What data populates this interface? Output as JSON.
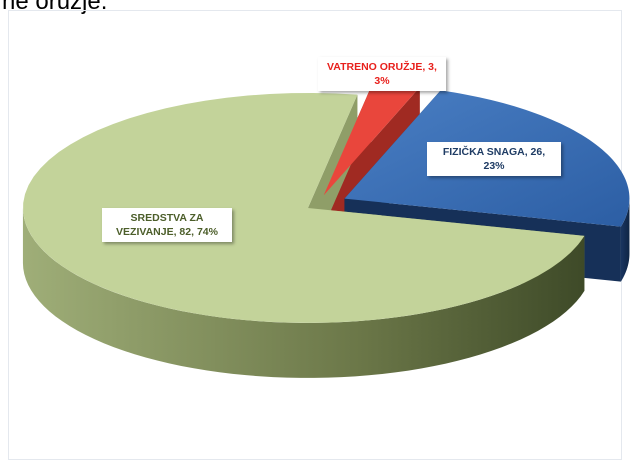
{
  "title": "ne oružje.",
  "chart_data": {
    "type": "pie",
    "categories": [
      "VATRENO ORUŽJE",
      "FIZIČKA SNAGA",
      "SREDSTVA ZA VEZIVANJE"
    ],
    "values": [
      3,
      26,
      82
    ],
    "value_labels": [
      "VATRENO ORUŽJE, 3, 3%",
      "FIZIČKA SNAGA, 26, 23%",
      "SREDSTVA ZA VEZIVANJE, 82, 74%"
    ],
    "colors": [
      "#e9463c",
      "#3a6db4",
      "#c3d39a"
    ]
  }
}
